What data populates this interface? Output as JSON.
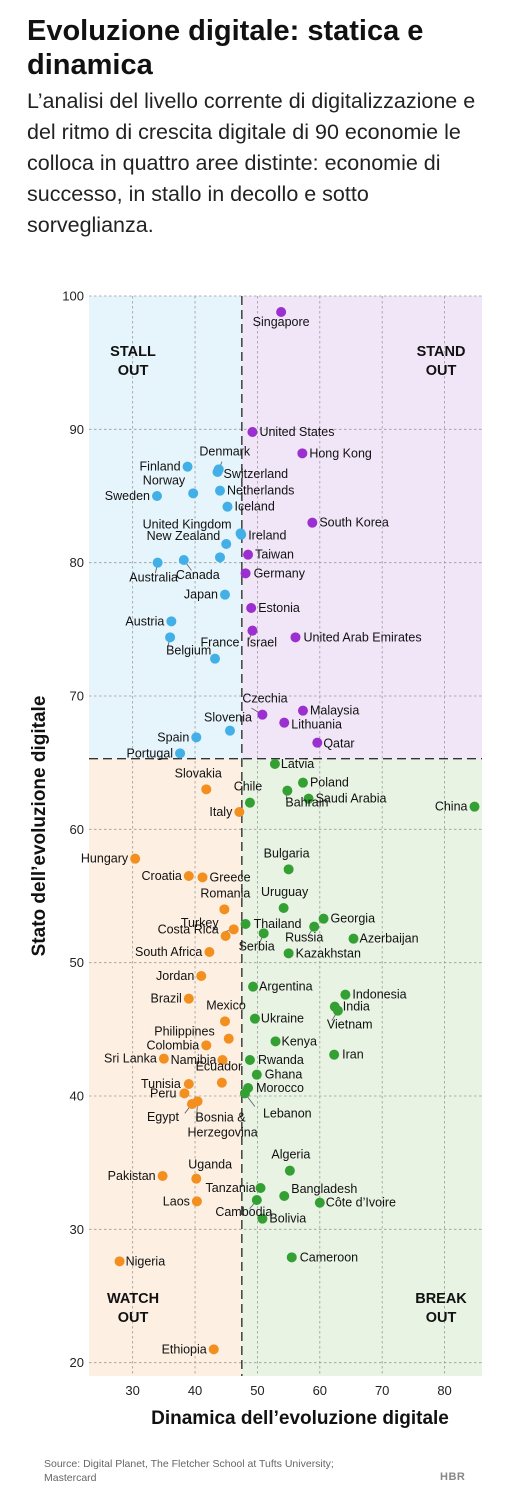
{
  "header": {
    "title": "Evoluzione digitale: statica e dinamica",
    "subtitle": "L’analisi del livello corrente di digitalizzazione e del ritmo di crescita digitale di 90 economie le colloca in quattro aree distinte: economie di successo, in stallo in decollo e sotto sorveglianza."
  },
  "footer": {
    "source": "Source: Digital Planet, The Fletcher School at Tufts University; Mastercard",
    "logo": "HBR"
  },
  "colors": {
    "stall_out": "#42b0e6",
    "stand_out": "#9b2fcf",
    "watch_out": "#f28f1f",
    "break_out": "#34a034",
    "stall_out_bg": "#e6f4fb",
    "stand_out_bg": "#f1e6f8",
    "watch_out_bg": "#fdf0e2",
    "break_out_bg": "#e8f3e3"
  },
  "chart_data": {
    "type": "scatter",
    "xlabel": "Dinamica dell’evoluzione digitale",
    "ylabel": "Stato dell’evoluzione digitale",
    "xlim": [
      23,
      86
    ],
    "ylim": [
      19,
      100
    ],
    "xticks": [
      30,
      40,
      50,
      60,
      70,
      80
    ],
    "yticks": [
      20,
      30,
      40,
      50,
      60,
      70,
      80,
      90,
      100
    ],
    "grid": true,
    "dividers": {
      "x": 47.5,
      "y": 65.3
    },
    "quadrants": [
      {
        "key": "stall_out",
        "line1": "STALL",
        "line2": "OUT",
        "x": [
          23,
          47.5
        ],
        "y": [
          65.3,
          100
        ]
      },
      {
        "key": "stand_out",
        "line1": "STAND",
        "line2": "OUT",
        "x": [
          47.5,
          86
        ],
        "y": [
          65.3,
          100
        ]
      },
      {
        "key": "watch_out",
        "line1": "WATCH",
        "line2": "OUT",
        "x": [
          23,
          47.5
        ],
        "y": [
          19,
          65.3
        ]
      },
      {
        "key": "break_out",
        "line1": "BREAK",
        "line2": "OUT",
        "x": [
          47.5,
          86
        ],
        "y": [
          19,
          65.3
        ]
      }
    ],
    "points": [
      {
        "name": "Singapore",
        "x": 53.8,
        "y": 98.8,
        "group": "stand_out",
        "lx": 0,
        "ly": 14,
        "anchor": "middle"
      },
      {
        "name": "United States",
        "x": 49.2,
        "y": 89.8,
        "group": "stand_out",
        "lx": 7,
        "ly": 4,
        "anchor": "start"
      },
      {
        "name": "Hong Kong",
        "x": 57.2,
        "y": 88.2,
        "group": "stand_out",
        "lx": 7,
        "ly": 4,
        "anchor": "start"
      },
      {
        "name": "South Korea",
        "x": 58.8,
        "y": 83.0,
        "group": "stand_out",
        "lx": 7,
        "ly": 4,
        "anchor": "start"
      },
      {
        "name": "Taiwan",
        "x": 48.5,
        "y": 80.6,
        "group": "stand_out",
        "lx": 7,
        "ly": 4,
        "anchor": "start"
      },
      {
        "name": "Germany",
        "x": 48.1,
        "y": 79.2,
        "group": "stand_out",
        "lx": 8,
        "ly": 4,
        "anchor": "start"
      },
      {
        "name": "Estonia",
        "x": 49.0,
        "y": 76.6,
        "group": "stand_out",
        "lx": 7,
        "ly": 4,
        "anchor": "start"
      },
      {
        "name": "Israel",
        "x": 49.2,
        "y": 74.9,
        "group": "stand_out",
        "lx": -6,
        "ly": 16,
        "anchor": "start"
      },
      {
        "name": "United Arab Emirates",
        "x": 56.1,
        "y": 74.4,
        "group": "stand_out",
        "lx": 8,
        "ly": 4,
        "anchor": "start"
      },
      {
        "name": "Czechia",
        "x": 50.8,
        "y": 68.6,
        "group": "stand_out",
        "lx": -20,
        "ly": -12,
        "anchor": "start"
      },
      {
        "name": "Malaysia",
        "x": 57.3,
        "y": 68.9,
        "group": "stand_out",
        "lx": 7,
        "ly": 4,
        "anchor": "start"
      },
      {
        "name": "Lithuania",
        "x": 54.3,
        "y": 68.0,
        "group": "stand_out",
        "lx": 7,
        "ly": 6,
        "anchor": "start"
      },
      {
        "name": "Qatar",
        "x": 59.6,
        "y": 66.5,
        "group": "stand_out",
        "lx": 6,
        "ly": 5,
        "anchor": "start"
      },
      {
        "name": "Finland",
        "x": 38.8,
        "y": 87.2,
        "group": "stall_out",
        "lx": -7,
        "ly": 4,
        "anchor": "end"
      },
      {
        "name": "Denmark",
        "x": 43.8,
        "y": 87.0,
        "group": "stall_out",
        "lx": 6,
        "ly": -14,
        "anchor": "middle"
      },
      {
        "name": "Switzerland",
        "x": 43.6,
        "y": 86.8,
        "group": "stall_out",
        "lx": 6,
        "ly": 6,
        "anchor": "start"
      },
      {
        "name": "Norway",
        "x": 39.7,
        "y": 85.2,
        "group": "stall_out",
        "lx": -8,
        "ly": -9,
        "anchor": "end"
      },
      {
        "name": "Sweden",
        "x": 33.9,
        "y": 85.0,
        "group": "stall_out",
        "lx": -7,
        "ly": 4,
        "anchor": "end"
      },
      {
        "name": "Netherlands",
        "x": 44.0,
        "y": 85.4,
        "group": "stall_out",
        "lx": 7,
        "ly": 4,
        "anchor": "start"
      },
      {
        "name": "Iceland",
        "x": 45.2,
        "y": 84.2,
        "group": "stall_out",
        "lx": 7,
        "ly": 4,
        "anchor": "start"
      },
      {
        "name": "United Kingdom",
        "x": 47.3,
        "y": 82.2,
        "group": "stall_out",
        "lx": -9,
        "ly": -5,
        "anchor": "end"
      },
      {
        "name": "Ireland",
        "x": 47.4,
        "y": 82.1,
        "group": "stall_out",
        "lx": 7,
        "ly": 5,
        "anchor": "start"
      },
      {
        "name": "New Zealand",
        "x": 45.0,
        "y": 81.4,
        "group": "stall_out",
        "lx": -6,
        "ly": -4,
        "anchor": "end"
      },
      {
        "name": "Canada",
        "x": 38.2,
        "y": 80.2,
        "group": "stall_out",
        "lx": 14,
        "ly": 19,
        "anchor": "middle"
      },
      {
        "name": "Australia",
        "x": 34.0,
        "y": 80.0,
        "group": "stall_out",
        "lx": -4,
        "ly": 19,
        "anchor": "middle"
      },
      {
        "name": "Germany-dot",
        "x": 44.0,
        "y": 80.4,
        "group": "stall_out",
        "lx": 0,
        "ly": 0,
        "anchor": "start",
        "nolabel": true
      },
      {
        "name": "Japan",
        "x": 44.8,
        "y": 77.6,
        "group": "stall_out",
        "lx": -7,
        "ly": 4,
        "anchor": "end"
      },
      {
        "name": "Austria",
        "x": 36.2,
        "y": 75.6,
        "group": "stall_out",
        "lx": -7,
        "ly": 4,
        "anchor": "end"
      },
      {
        "name": "Belgium",
        "x": 36.0,
        "y": 74.4,
        "group": "stall_out",
        "lx": -4,
        "ly": 17,
        "anchor": "start"
      },
      {
        "name": "France",
        "x": 43.2,
        "y": 72.8,
        "group": "stall_out",
        "lx": 5,
        "ly": -12,
        "anchor": "middle"
      },
      {
        "name": "Slovenia",
        "x": 45.6,
        "y": 67.4,
        "group": "stall_out",
        "lx": -2,
        "ly": -9,
        "anchor": "middle"
      },
      {
        "name": "Spain",
        "x": 40.2,
        "y": 66.9,
        "group": "stall_out",
        "lx": -7,
        "ly": 4,
        "anchor": "end"
      },
      {
        "name": "Portugal",
        "x": 37.6,
        "y": 65.7,
        "group": "stall_out",
        "lx": -7,
        "ly": 4,
        "anchor": "end"
      },
      {
        "name": "Latvia",
        "x": 52.8,
        "y": 64.9,
        "group": "break_out",
        "lx": 6,
        "ly": 4,
        "anchor": "start"
      },
      {
        "name": "Poland",
        "x": 57.3,
        "y": 63.5,
        "group": "break_out",
        "lx": 7,
        "ly": 4,
        "anchor": "start"
      },
      {
        "name": "Chile",
        "x": 48.8,
        "y": 62.0,
        "group": "break_out",
        "lx": -2,
        "ly": -12,
        "anchor": "middle"
      },
      {
        "name": "Bahrain",
        "x": 54.8,
        "y": 62.9,
        "group": "break_out",
        "lx": -2,
        "ly": 16,
        "anchor": "start"
      },
      {
        "name": "Saudi Arabia",
        "x": 58.2,
        "y": 62.3,
        "group": "break_out",
        "lx": 7,
        "ly": 4,
        "anchor": "start"
      },
      {
        "name": "China",
        "x": 84.8,
        "y": 61.7,
        "group": "break_out",
        "lx": -7,
        "ly": 4,
        "anchor": "end"
      },
      {
        "name": "Bulgaria",
        "x": 55.0,
        "y": 57.0,
        "group": "break_out",
        "lx": -2,
        "ly": -12,
        "anchor": "middle"
      },
      {
        "name": "Uruguay",
        "x": 54.2,
        "y": 54.1,
        "group": "break_out",
        "lx": 1,
        "ly": -12,
        "anchor": "middle"
      },
      {
        "name": "Thailand",
        "x": 48.1,
        "y": 52.9,
        "group": "break_out",
        "lx": 8,
        "ly": 4,
        "anchor": "start"
      },
      {
        "name": "Georgia",
        "x": 60.6,
        "y": 53.3,
        "group": "break_out",
        "lx": 7,
        "ly": 4,
        "anchor": "start"
      },
      {
        "name": "Russia",
        "x": 59.1,
        "y": 52.7,
        "group": "break_out",
        "lx": -10,
        "ly": 15,
        "anchor": "middle"
      },
      {
        "name": "Serbia",
        "x": 51.0,
        "y": 52.2,
        "group": "break_out",
        "lx": -7,
        "ly": 17,
        "anchor": "middle"
      },
      {
        "name": "Azerbaijan",
        "x": 65.4,
        "y": 51.8,
        "group": "break_out",
        "lx": 6,
        "ly": 4,
        "anchor": "start"
      },
      {
        "name": "Kazakhstan",
        "x": 55.0,
        "y": 50.7,
        "group": "break_out",
        "lx": 7,
        "ly": 4,
        "anchor": "start"
      },
      {
        "name": "Argentina",
        "x": 49.3,
        "y": 48.2,
        "group": "break_out",
        "lx": 6,
        "ly": 4,
        "anchor": "start"
      },
      {
        "name": "Indonesia",
        "x": 64.1,
        "y": 47.6,
        "group": "break_out",
        "lx": 7,
        "ly": 4,
        "anchor": "start"
      },
      {
        "name": "India",
        "x": 62.4,
        "y": 46.7,
        "group": "break_out",
        "lx": 8,
        "ly": 4,
        "anchor": "start"
      },
      {
        "name": "Vietnam",
        "x": 62.9,
        "y": 46.4,
        "group": "break_out",
        "lx": -11,
        "ly": 18,
        "anchor": "start"
      },
      {
        "name": "Ukraine",
        "x": 49.6,
        "y": 45.8,
        "group": "break_out",
        "lx": 6,
        "ly": 4,
        "anchor": "start"
      },
      {
        "name": "Kenya",
        "x": 52.9,
        "y": 44.1,
        "group": "break_out",
        "lx": 6,
        "ly": 4,
        "anchor": "start"
      },
      {
        "name": "Iran",
        "x": 62.3,
        "y": 43.1,
        "group": "break_out",
        "lx": 8,
        "ly": 4,
        "anchor": "start"
      },
      {
        "name": "Rwanda",
        "x": 48.8,
        "y": 42.7,
        "group": "break_out",
        "lx": 8,
        "ly": 4,
        "anchor": "start"
      },
      {
        "name": "Ghana",
        "x": 49.9,
        "y": 41.6,
        "group": "break_out",
        "lx": 8,
        "ly": 4,
        "anchor": "start"
      },
      {
        "name": "Morocco",
        "x": 48.5,
        "y": 40.6,
        "group": "break_out",
        "lx": 8,
        "ly": 4,
        "anchor": "start"
      },
      {
        "name": "Lebanon",
        "x": 48.0,
        "y": 40.2,
        "group": "break_out",
        "lx": 18,
        "ly": 24,
        "anchor": "start"
      },
      {
        "name": "Algeria",
        "x": 55.2,
        "y": 34.4,
        "group": "break_out",
        "lx": 1,
        "ly": -12,
        "anchor": "middle"
      },
      {
        "name": "Tanzania",
        "x": 50.5,
        "y": 33.1,
        "group": "break_out",
        "lx": -5,
        "ly": 4,
        "anchor": "end"
      },
      {
        "name": "Bangladesh",
        "x": 54.3,
        "y": 32.5,
        "group": "break_out",
        "lx": 7,
        "ly": -3,
        "anchor": "start"
      },
      {
        "name": "Côte d’Ivoire",
        "x": 60.0,
        "y": 32.0,
        "group": "break_out",
        "lx": 6,
        "ly": 4,
        "anchor": "start"
      },
      {
        "name": "Cambodia",
        "x": 49.9,
        "y": 32.2,
        "group": "break_out",
        "lx": -13,
        "ly": 16,
        "anchor": "middle"
      },
      {
        "name": "Bolivia",
        "x": 50.8,
        "y": 30.8,
        "group": "break_out",
        "lx": 7,
        "ly": 4,
        "anchor": "start"
      },
      {
        "name": "Cameroon",
        "x": 55.5,
        "y": 27.9,
        "group": "break_out",
        "lx": 8,
        "ly": 4,
        "anchor": "start"
      },
      {
        "name": "Slovakia",
        "x": 41.8,
        "y": 63.0,
        "group": "watch_out",
        "lx": -8,
        "ly": -12,
        "anchor": "middle"
      },
      {
        "name": "Italy",
        "x": 47.1,
        "y": 61.3,
        "group": "watch_out",
        "lx": -7,
        "ly": 4,
        "anchor": "end"
      },
      {
        "name": "Hungary",
        "x": 30.4,
        "y": 57.8,
        "group": "watch_out",
        "lx": -7,
        "ly": 4,
        "anchor": "end"
      },
      {
        "name": "Croatia",
        "x": 39.0,
        "y": 56.5,
        "group": "watch_out",
        "lx": -7,
        "ly": 4,
        "anchor": "end"
      },
      {
        "name": "Greece",
        "x": 41.2,
        "y": 56.4,
        "group": "watch_out",
        "lx": 7,
        "ly": 4,
        "anchor": "start"
      },
      {
        "name": "Romania",
        "x": 44.7,
        "y": 54.0,
        "group": "watch_out",
        "lx": 1,
        "ly": -12,
        "anchor": "middle"
      },
      {
        "name": "Turkey",
        "x": 44.9,
        "y": 52.0,
        "group": "watch_out",
        "lx": -7,
        "ly": -9,
        "anchor": "end"
      },
      {
        "name": "Costa Rica",
        "x": 46.2,
        "y": 52.5,
        "group": "watch_out",
        "lx": -15,
        "ly": 4,
        "anchor": "end"
      },
      {
        "name": "South Africa",
        "x": 42.3,
        "y": 50.8,
        "group": "watch_out",
        "lx": -7,
        "ly": 4,
        "anchor": "end"
      },
      {
        "name": "Jordan",
        "x": 41.0,
        "y": 49.0,
        "group": "watch_out",
        "lx": -7,
        "ly": 4,
        "anchor": "end"
      },
      {
        "name": "Brazil",
        "x": 39.0,
        "y": 47.3,
        "group": "watch_out",
        "lx": -7,
        "ly": 4,
        "anchor": "end"
      },
      {
        "name": "Mexico",
        "x": 44.8,
        "y": 45.6,
        "group": "watch_out",
        "lx": 1,
        "ly": -12,
        "anchor": "middle"
      },
      {
        "name": "Philippines",
        "x": 45.4,
        "y": 44.3,
        "group": "watch_out",
        "lx": -14,
        "ly": -3,
        "anchor": "end"
      },
      {
        "name": "Colombia",
        "x": 41.8,
        "y": 43.8,
        "group": "watch_out",
        "lx": -7,
        "ly": 4,
        "anchor": "end"
      },
      {
        "name": "Sri Lanka",
        "x": 35.0,
        "y": 42.8,
        "group": "watch_out",
        "lx": -7,
        "ly": 4,
        "anchor": "end"
      },
      {
        "name": "Namibia",
        "x": 44.4,
        "y": 42.7,
        "group": "watch_out",
        "lx": -6,
        "ly": 4,
        "anchor": "end"
      },
      {
        "name": "Ecuador",
        "x": 44.3,
        "y": 41.0,
        "group": "watch_out",
        "lx": -3,
        "ly": -12,
        "anchor": "middle"
      },
      {
        "name": "Tunisia",
        "x": 39.0,
        "y": 40.9,
        "group": "watch_out",
        "lx": -8,
        "ly": 4,
        "anchor": "end"
      },
      {
        "name": "Peru",
        "x": 38.3,
        "y": 40.2,
        "group": "watch_out",
        "lx": -8,
        "ly": 4,
        "anchor": "end"
      },
      {
        "name": "Egypt",
        "x": 39.5,
        "y": 39.4,
        "group": "watch_out",
        "lx": -13,
        "ly": 17,
        "anchor": "end"
      },
      {
        "name": "Bosnia & Herzegovina",
        "x": 40.4,
        "y": 39.6,
        "group": "watch_out",
        "lx": -2,
        "ly": 35,
        "anchor": "start",
        "split": true
      },
      {
        "name": "Uganda",
        "x": 40.2,
        "y": 33.8,
        "group": "watch_out",
        "lx": -8,
        "ly": -10,
        "anchor": "start"
      },
      {
        "name": "Pakistan",
        "x": 34.8,
        "y": 34.0,
        "group": "watch_out",
        "lx": -7,
        "ly": 4,
        "anchor": "end"
      },
      {
        "name": "Laos",
        "x": 40.3,
        "y": 32.1,
        "group": "watch_out",
        "lx": -7,
        "ly": 4,
        "anchor": "end"
      },
      {
        "name": "Nigeria",
        "x": 27.9,
        "y": 27.6,
        "group": "watch_out",
        "lx": 6,
        "ly": 4,
        "anchor": "start"
      },
      {
        "name": "Ethiopia",
        "x": 43.0,
        "y": 21.0,
        "group": "watch_out",
        "lx": -7,
        "ly": 4,
        "anchor": "end"
      }
    ]
  }
}
